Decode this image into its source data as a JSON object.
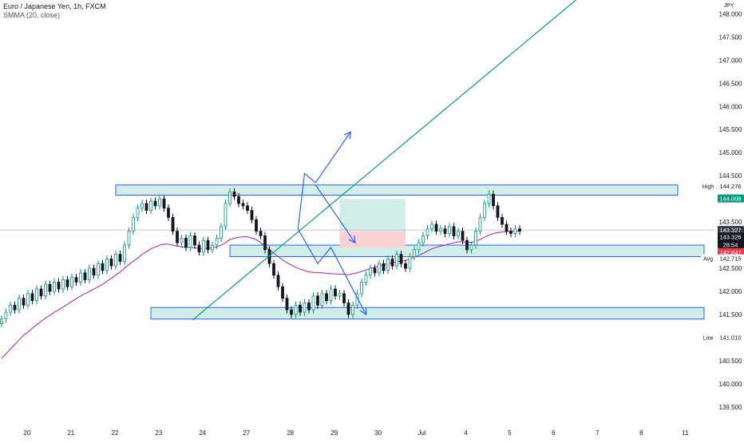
{
  "legend": {
    "title": "Euro / Japanese Yen, 1h, FXCM",
    "indicator": "SMMA (20, close)"
  },
  "currency": "JPY",
  "chart_data": {
    "type": "candlestick",
    "symbol": "EURJPY",
    "timeframe": "1h",
    "ylim": [
      139.1,
      148.3
    ],
    "y_ticks": [
      139.5,
      140.0,
      140.5,
      141.0,
      141.5,
      142.0,
      142.5,
      143.0,
      143.5,
      144.0,
      144.5,
      145.0,
      145.5,
      146.0,
      146.5,
      147.0,
      147.5,
      148.0
    ],
    "y_tick_labels": [
      "139.500",
      "140.000",
      "140.500",
      "141.000",
      "141.500",
      "142.000",
      "142.500",
      "143.000",
      "143.500",
      "144.000",
      "144.500",
      "145.000",
      "145.500",
      "146.000",
      "146.500",
      "147.000",
      "147.500",
      "148.000"
    ],
    "x_labels": [
      "20",
      "21",
      "22",
      "23",
      "24",
      "27",
      "28",
      "29",
      "30",
      "Jul",
      "4",
      "5",
      "6",
      "7",
      "8",
      "11"
    ],
    "x_label_pos": [
      0,
      1,
      2,
      3,
      4,
      5,
      6,
      7,
      8,
      9,
      10,
      11,
      12,
      13,
      14,
      15
    ],
    "candle_close": [
      141.4,
      141.55,
      141.7,
      141.6,
      141.85,
      141.7,
      141.95,
      141.8,
      142.05,
      141.9,
      142.15,
      142.0,
      142.2,
      142.05,
      142.25,
      142.1,
      142.3,
      142.2,
      142.4,
      142.25,
      142.5,
      142.35,
      142.6,
      142.45,
      142.7,
      142.55,
      142.8,
      142.65,
      143.0,
      143.3,
      143.6,
      143.8,
      143.9,
      143.75,
      143.95,
      143.85,
      144.0,
      143.8,
      143.6,
      143.3,
      143.05,
      143.15,
      142.95,
      143.2,
      143.0,
      142.85,
      143.1,
      142.9,
      143.0,
      143.15,
      143.4,
      143.9,
      144.15,
      144.05,
      143.9,
      143.85,
      143.75,
      143.55,
      143.3,
      143.2,
      142.9,
      142.6,
      142.35,
      142.1,
      141.85,
      141.6,
      141.5,
      141.7,
      141.55,
      141.75,
      141.6,
      141.9,
      141.7,
      141.95,
      141.8,
      142.05,
      141.9,
      141.95,
      141.75,
      141.5,
      141.7,
      141.95,
      142.2,
      142.35,
      142.5,
      142.4,
      142.6,
      142.45,
      142.7,
      142.55,
      142.8,
      142.6,
      142.5,
      142.75,
      142.9,
      143.05,
      143.2,
      143.35,
      143.45,
      143.3,
      143.35,
      143.25,
      143.4,
      143.2,
      143.3,
      143.1,
      142.9,
      143.0,
      143.3,
      143.6,
      143.9,
      144.1,
      143.85,
      143.6,
      143.45,
      143.3,
      143.25,
      143.35,
      143.3
    ],
    "candle_up": [
      true,
      true,
      true,
      false,
      true,
      false,
      true,
      false,
      true,
      false,
      true,
      false,
      true,
      false,
      true,
      false,
      true,
      false,
      true,
      false,
      true,
      false,
      true,
      false,
      true,
      false,
      true,
      false,
      true,
      true,
      true,
      true,
      true,
      false,
      true,
      false,
      true,
      false,
      false,
      false,
      false,
      true,
      false,
      true,
      false,
      false,
      true,
      false,
      true,
      true,
      true,
      true,
      true,
      false,
      false,
      false,
      false,
      false,
      false,
      false,
      false,
      false,
      false,
      false,
      false,
      false,
      false,
      true,
      false,
      true,
      false,
      true,
      false,
      true,
      false,
      true,
      false,
      true,
      false,
      false,
      true,
      true,
      true,
      true,
      true,
      false,
      true,
      false,
      true,
      false,
      true,
      false,
      false,
      true,
      true,
      true,
      true,
      true,
      true,
      false,
      true,
      false,
      true,
      false,
      true,
      false,
      false,
      true,
      true,
      true,
      true,
      true,
      false,
      false,
      false,
      false,
      false,
      true,
      false
    ],
    "smma": [
      140.55,
      140.65,
      140.75,
      140.85,
      140.95,
      141.05,
      141.12,
      141.2,
      141.28,
      141.35,
      141.42,
      141.48,
      141.55,
      141.6,
      141.66,
      141.72,
      141.78,
      141.84,
      141.9,
      141.95,
      142.0,
      142.05,
      142.1,
      142.15,
      142.22,
      142.28,
      142.35,
      142.42,
      142.5,
      142.58,
      142.65,
      142.72,
      142.8,
      142.86,
      142.92,
      142.96,
      143.0,
      143.02,
      143.02,
      143.0,
      142.98,
      142.96,
      142.95,
      142.95,
      142.94,
      142.93,
      142.93,
      142.93,
      142.94,
      142.96,
      143.0,
      143.05,
      143.12,
      143.15,
      143.17,
      143.18,
      143.18,
      143.15,
      143.12,
      143.05,
      142.98,
      142.9,
      142.82,
      142.75,
      142.68,
      142.62,
      142.57,
      142.52,
      142.48,
      142.45,
      142.42,
      142.41,
      142.4,
      142.4,
      142.39,
      142.38,
      142.38,
      142.37,
      142.37,
      142.36,
      142.38,
      142.4,
      142.43,
      142.46,
      142.5,
      142.52,
      142.55,
      142.58,
      142.6,
      142.62,
      142.64,
      142.65,
      142.67,
      142.7,
      142.74,
      142.78,
      142.82,
      142.87,
      142.92,
      142.95,
      142.98,
      143.0,
      143.03,
      143.05,
      143.07,
      143.07,
      143.06,
      143.06,
      143.08,
      143.12,
      143.17,
      143.22,
      143.25,
      143.27,
      143.28,
      143.29,
      143.3,
      143.3,
      143.31
    ],
    "zones": [
      {
        "from_idx": 26,
        "to_idx": 154,
        "top": 144.3,
        "bottom": 144.08
      },
      {
        "from_idx": 52,
        "to_idx": 160,
        "top": 143.0,
        "bottom": 142.75
      },
      {
        "from_idx": 34,
        "to_idx": 160,
        "top": 141.65,
        "bottom": 141.4
      }
    ],
    "trendline": {
      "x0": 43.5,
      "y0": 141.38,
      "x1": 130.8,
      "y1": 148.3
    },
    "projection_up": [
      {
        "x": 67.5,
        "y": 143.35
      },
      {
        "x": 69.0,
        "y": 144.55
      },
      {
        "x": 71.5,
        "y": 144.35
      },
      {
        "x": 79.5,
        "y": 145.45
      }
    ],
    "projection_down": [
      {
        "x": 67.5,
        "y": 143.35
      },
      {
        "x": 72.0,
        "y": 142.6
      },
      {
        "x": 75.0,
        "y": 142.95
      },
      {
        "x": 83.0,
        "y": 141.5
      }
    ],
    "projection_mid": [
      {
        "x": 71.5,
        "y": 144.3
      },
      {
        "x": 80.5,
        "y": 143.05
      }
    ],
    "position": {
      "from_idx": 77,
      "to_idx": 92,
      "entry": 143.3,
      "target": 144.0,
      "stop": 142.95
    },
    "crosshair_price": 143.327,
    "price_labels": [
      {
        "name": "high",
        "tag": "High",
        "value": "144.276",
        "price": 144.276,
        "bg": "#ffffff",
        "fg": "#131722"
      },
      {
        "name": "target",
        "tag": "",
        "value": "144.008",
        "price": 144.008,
        "bg": "#089981",
        "fg": "#ffffff"
      },
      {
        "name": "crosshair",
        "tag": "",
        "value": "143.327",
        "price": 143.327,
        "bg": "#363a45",
        "fg": "#ffffff"
      },
      {
        "name": "last",
        "tag": "",
        "value": "143.326",
        "price": 143.186,
        "bg": "#131722",
        "fg": "#ffffff",
        "sub": "28:54"
      },
      {
        "name": "stop",
        "tag": "",
        "value": "142.847",
        "price": 142.847,
        "bg": "#f23645",
        "fg": "#ffffff"
      },
      {
        "name": "avg",
        "tag": "Avg",
        "value": "142.715",
        "price": 142.715,
        "bg": "#ffffff",
        "fg": "#131722"
      },
      {
        "name": "low",
        "tag": "Low",
        "value": "141.010",
        "price": 141.01,
        "bg": "#ffffff",
        "fg": "#131722"
      }
    ],
    "colors": {
      "up": "#089981",
      "down": "#131722",
      "smma": "#9c27b0",
      "zone_fill": "#d1eee7",
      "zone_stroke": "#2962ff",
      "trendline": "#089981",
      "projection": "#2962ff",
      "target_fill": "#d1efe8",
      "stop_fill": "#fbd2d4"
    }
  }
}
